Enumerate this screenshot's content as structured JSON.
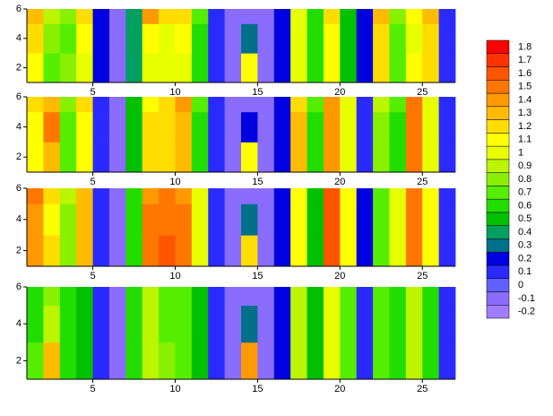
{
  "chart_data": [
    {
      "type": "contour",
      "xlim": [
        1,
        27
      ],
      "ylim": [
        1,
        6
      ],
      "xticks": [
        5,
        10,
        15,
        20,
        25
      ],
      "yticks": [
        2,
        4,
        6
      ],
      "x": [
        1,
        2,
        3,
        4,
        5,
        6,
        7,
        8,
        9,
        10,
        11,
        12,
        13,
        14,
        15,
        16,
        17,
        18,
        19,
        20,
        21,
        22,
        23,
        24,
        25,
        26,
        27
      ],
      "y": [
        1,
        3,
        5,
        6
      ],
      "z": [
        [
          1.1,
          0.7,
          0.8,
          1.0,
          0.2,
          -0.1,
          0.4,
          1.0,
          1.0,
          1.0,
          0.6,
          0.1,
          -0.1,
          1.1,
          -0.1,
          0.2,
          1.0,
          0.6,
          1.1,
          0.5,
          0.2,
          1.2,
          0.7,
          1.1,
          1.2,
          0.1
        ],
        [
          1.2,
          0.8,
          0.7,
          1.1,
          0.2,
          -0.1,
          0.4,
          1.1,
          1.0,
          1.1,
          0.6,
          0.1,
          -0.1,
          0.3,
          -0.1,
          0.2,
          1.0,
          0.6,
          1.1,
          0.5,
          0.2,
          1.2,
          0.7,
          1.0,
          1.2,
          0.1
        ],
        [
          1.3,
          0.9,
          0.8,
          1.2,
          0.2,
          -0.1,
          0.4,
          1.4,
          1.2,
          1.2,
          0.7,
          0.1,
          -0.1,
          -0.1,
          -0.1,
          0.2,
          1.0,
          0.6,
          1.2,
          0.5,
          0.2,
          1.3,
          0.8,
          1.1,
          1.3,
          0.1
        ]
      ]
    },
    {
      "type": "contour",
      "xlim": [
        1,
        27
      ],
      "ylim": [
        1,
        6
      ],
      "xticks": [
        5,
        10,
        15,
        20,
        25
      ],
      "yticks": [
        2,
        4,
        6
      ],
      "x": [
        1,
        2,
        3,
        4,
        5,
        6,
        7,
        8,
        9,
        10,
        11,
        12,
        13,
        14,
        15,
        16,
        17,
        18,
        19,
        20,
        21,
        22,
        23,
        24,
        25,
        26,
        27
      ],
      "y": [
        1,
        3,
        5,
        6
      ],
      "z": [
        [
          1.1,
          1.3,
          0.7,
          1.1,
          0.1,
          -0.1,
          0.5,
          1.2,
          1.2,
          1.3,
          0.6,
          0.1,
          -0.1,
          1.1,
          -0.1,
          0.2,
          1.3,
          0.6,
          1.4,
          1.0,
          0.1,
          0.8,
          0.6,
          1.5,
          1.0,
          0.1
        ],
        [
          1.1,
          1.5,
          0.7,
          1.1,
          0.1,
          -0.1,
          0.5,
          1.2,
          1.2,
          1.3,
          0.6,
          0.1,
          -0.1,
          0.2,
          -0.1,
          0.2,
          1.3,
          0.6,
          1.4,
          1.0,
          0.1,
          0.8,
          0.6,
          1.5,
          1.0,
          0.1
        ],
        [
          1.2,
          1.3,
          0.8,
          1.2,
          0.1,
          -0.1,
          0.5,
          1.1,
          1.2,
          1.4,
          0.7,
          0.1,
          -0.1,
          -0.1,
          -0.1,
          0.2,
          1.2,
          0.7,
          1.4,
          1.0,
          0.1,
          0.9,
          0.7,
          1.5,
          1.0,
          0.1
        ]
      ]
    },
    {
      "type": "contour",
      "xlim": [
        1,
        27
      ],
      "ylim": [
        1,
        6
      ],
      "xticks": [
        5,
        10,
        15,
        20,
        25
      ],
      "yticks": [
        2,
        4,
        6
      ],
      "x": [
        1,
        2,
        3,
        4,
        5,
        6,
        7,
        8,
        9,
        10,
        11,
        12,
        13,
        14,
        15,
        16,
        17,
        18,
        19,
        20,
        21,
        22,
        23,
        24,
        25,
        26,
        27
      ],
      "y": [
        1,
        3,
        5,
        6
      ],
      "z": [
        [
          1.4,
          1.2,
          0.8,
          1.3,
          0.1,
          -0.1,
          0.6,
          1.5,
          1.6,
          1.5,
          1.0,
          0.1,
          -0.1,
          1.2,
          -0.1,
          0.2,
          1.1,
          0.5,
          1.6,
          1.1,
          0.2,
          0.7,
          1.0,
          1.5,
          1.1,
          0.1
        ],
        [
          1.4,
          1.1,
          0.8,
          1.3,
          0.1,
          -0.1,
          0.6,
          1.5,
          1.5,
          1.5,
          1.0,
          0.1,
          -0.1,
          0.3,
          -0.1,
          0.2,
          1.1,
          0.5,
          1.6,
          1.1,
          0.2,
          0.7,
          1.0,
          1.5,
          1.1,
          0.1
        ],
        [
          1.5,
          1.2,
          0.9,
          1.3,
          0.1,
          -0.1,
          0.6,
          1.4,
          1.5,
          1.4,
          1.0,
          0.1,
          -0.1,
          -0.1,
          -0.1,
          0.2,
          1.1,
          0.5,
          1.6,
          1.1,
          0.2,
          0.7,
          1.0,
          1.5,
          1.1,
          0.1
        ]
      ]
    },
    {
      "type": "contour",
      "xlim": [
        1,
        27
      ],
      "ylim": [
        1,
        6
      ],
      "xticks": [
        5,
        10,
        15,
        20,
        25
      ],
      "yticks": [
        2,
        4,
        6
      ],
      "x": [
        1,
        2,
        3,
        4,
        5,
        6,
        7,
        8,
        9,
        10,
        11,
        12,
        13,
        14,
        15,
        16,
        17,
        18,
        19,
        20,
        21,
        22,
        23,
        24,
        25,
        26,
        27
      ],
      "y": [
        1,
        3,
        5,
        6
      ],
      "z": [
        [
          0.7,
          1.3,
          0.6,
          0.5,
          0.1,
          -0.1,
          0.6,
          0.9,
          0.8,
          0.7,
          0.5,
          0.1,
          -0.1,
          1.4,
          -0.1,
          0.2,
          0.9,
          0.5,
          1.0,
          0.7,
          0.1,
          0.7,
          0.6,
          0.9,
          0.6,
          0.1
        ],
        [
          0.6,
          0.9,
          0.6,
          0.5,
          0.1,
          -0.1,
          0.6,
          0.9,
          0.7,
          0.7,
          0.5,
          0.1,
          -0.1,
          0.3,
          -0.1,
          0.2,
          0.9,
          0.5,
          1.0,
          0.7,
          0.1,
          0.7,
          0.6,
          0.9,
          0.6,
          0.1
        ],
        [
          0.6,
          0.8,
          0.6,
          0.5,
          0.1,
          -0.1,
          0.6,
          0.9,
          0.7,
          0.7,
          0.5,
          0.1,
          -0.1,
          -0.1,
          -0.1,
          0.2,
          0.9,
          0.5,
          1.0,
          0.7,
          0.1,
          0.7,
          0.6,
          0.9,
          0.6,
          0.1
        ]
      ]
    },
    {
      "type": "colorbar",
      "levels": [
        -0.2,
        -0.1,
        0,
        0.1,
        0.2,
        0.3,
        0.4,
        0.5,
        0.6,
        0.7,
        0.8,
        0.9,
        1,
        1.1,
        1.2,
        1.3,
        1.4,
        1.5,
        1.6,
        1.7,
        1.8
      ],
      "colors": [
        "#a07cff",
        "#8a6cff",
        "#6060ff",
        "#2a2aff",
        "#0000e0",
        "#00708a",
        "#00a060",
        "#00c000",
        "#22dd00",
        "#55ee00",
        "#88f000",
        "#bbf500",
        "#e8ff00",
        "#ffff00",
        "#ffdd00",
        "#ffbb00",
        "#ff9900",
        "#ff7700",
        "#ff5500",
        "#ff3300",
        "#ff0000"
      ]
    }
  ]
}
